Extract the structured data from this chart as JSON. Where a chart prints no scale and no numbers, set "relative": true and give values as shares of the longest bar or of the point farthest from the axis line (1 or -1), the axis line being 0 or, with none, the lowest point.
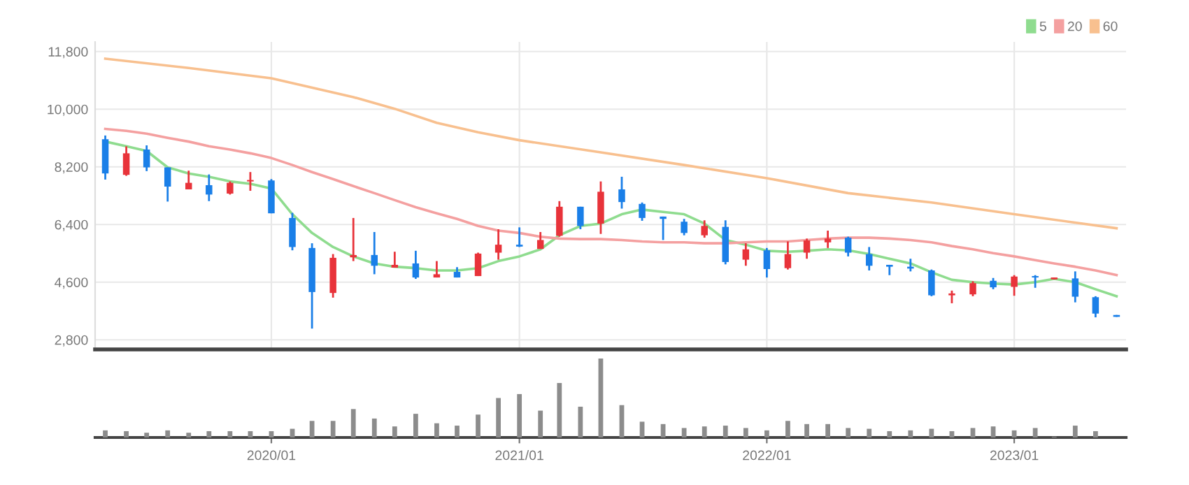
{
  "chart_data": [
    {
      "type": "candlestick",
      "x": [
        "2019-05",
        "2019-06",
        "2019-07",
        "2019-08",
        "2019-09",
        "2019-10",
        "2019-11",
        "2019-12",
        "2020-01",
        "2020-02",
        "2020-03",
        "2020-04",
        "2020-05",
        "2020-06",
        "2020-07",
        "2020-08",
        "2020-09",
        "2020-10",
        "2020-11",
        "2020-12",
        "2021-01",
        "2021-02",
        "2021-03",
        "2021-04",
        "2021-05",
        "2021-06",
        "2021-07",
        "2021-08",
        "2021-09",
        "2021-10",
        "2021-11",
        "2021-12",
        "2022-01",
        "2022-02",
        "2022-03",
        "2022-04",
        "2022-05",
        "2022-06",
        "2022-07",
        "2022-08",
        "2022-09",
        "2022-10",
        "2022-11",
        "2022-12",
        "2023-01",
        "2023-02",
        "2023-03",
        "2023-04",
        "2023-05",
        "2023-06"
      ],
      "ohlc": [
        [
          9062,
          9179,
          7803,
          7994
        ],
        [
          7950,
          8842,
          7920,
          8623
        ],
        [
          8740,
          8871,
          8067,
          8184
        ],
        [
          8184,
          8184,
          7116,
          7584
        ],
        [
          7496,
          8081,
          7496,
          7701
        ],
        [
          7628,
          7964,
          7130,
          7335
        ],
        [
          7365,
          7745,
          7335,
          7701
        ],
        [
          7745,
          8038,
          7452,
          7789
        ],
        [
          7774,
          7818,
          6750,
          6750
        ],
        [
          6604,
          6765,
          5594,
          5697
        ],
        [
          5667,
          5814,
          3151,
          4292
        ],
        [
          4263,
          5477,
          4117,
          5360
        ],
        [
          5375,
          6604,
          5258,
          5448
        ],
        [
          5448,
          6165,
          4848,
          5112
        ],
        [
          5053,
          5550,
          5053,
          5141
        ],
        [
          5185,
          5580,
          4702,
          4746
        ],
        [
          4746,
          5258,
          4746,
          4848
        ],
        [
          4921,
          5068,
          4746,
          4746
        ],
        [
          4790,
          5521,
          4790,
          5492
        ],
        [
          5521,
          6253,
          5302,
          5770
        ],
        [
          5770,
          6311,
          5697,
          5711
        ],
        [
          5638,
          6165,
          5638,
          5916
        ],
        [
          6048,
          7130,
          6019,
          6955
        ],
        [
          6955,
          6955,
          6253,
          6355
        ],
        [
          6428,
          7745,
          6106,
          7423
        ],
        [
          7496,
          7891,
          6896,
          7101
        ],
        [
          7043,
          7087,
          6516,
          6604
        ],
        [
          6648,
          6648,
          5916,
          6575
        ],
        [
          6487,
          6575,
          6063,
          6136
        ],
        [
          6063,
          6531,
          5989,
          6355
        ],
        [
          6326,
          6531,
          5155,
          5229
        ],
        [
          5302,
          5814,
          5112,
          5624
        ],
        [
          5594,
          5667,
          4746,
          5009
        ],
        [
          5038,
          5872,
          4995,
          5477
        ],
        [
          5521,
          5960,
          5331,
          5902
        ],
        [
          5843,
          6209,
          5667,
          5960
        ],
        [
          5989,
          6019,
          5404,
          5521
        ],
        [
          5477,
          5697,
          4965,
          5112
        ],
        [
          5141,
          5141,
          4819,
          5082
        ],
        [
          5082,
          5331,
          4936,
          5024
        ],
        [
          4965,
          4995,
          4161,
          4190
        ],
        [
          4190,
          4336,
          3941,
          4248
        ],
        [
          4219,
          4629,
          4161,
          4570
        ],
        [
          4643,
          4731,
          4380,
          4439
        ],
        [
          4453,
          4819,
          4175,
          4775
        ],
        [
          4790,
          4819,
          4424,
          4746
        ],
        [
          4687,
          4746,
          4687,
          4746
        ],
        [
          4717,
          4936,
          3970,
          4146
        ],
        [
          4131,
          4161,
          3502,
          3619
        ],
        [
          3575,
          3575,
          3517,
          3517
        ]
      ],
      "colors": [
        "#1a7fe8",
        "#e8333a",
        "#1a7fe8",
        "#1a7fe8",
        "#e8333a",
        "#1a7fe8",
        "#e8333a",
        "#e8333a",
        "#1a7fe8",
        "#1a7fe8",
        "#1a7fe8",
        "#e8333a",
        "#e8333a",
        "#1a7fe8",
        "#e8333a",
        "#1a7fe8",
        "#e8333a",
        "#1a7fe8",
        "#e8333a",
        "#e8333a",
        "#1a7fe8",
        "#e8333a",
        "#e8333a",
        "#1a7fe8",
        "#e8333a",
        "#1a7fe8",
        "#1a7fe8",
        "#1a7fe8",
        "#1a7fe8",
        "#e8333a",
        "#1a7fe8",
        "#e8333a",
        "#1a7fe8",
        "#e8333a",
        "#e8333a",
        "#e8333a",
        "#1a7fe8",
        "#1a7fe8",
        "#1a7fe8",
        "#1a7fe8",
        "#1a7fe8",
        "#e8333a",
        "#e8333a",
        "#1a7fe8",
        "#e8333a",
        "#1a7fe8",
        "#e8333a",
        "#1a7fe8",
        "#1a7fe8",
        "#1a7fe8"
      ],
      "series": [
        {
          "name": "5",
          "type": "line",
          "color": "#8fdc8f",
          "values": [
            8988,
            8842,
            8696,
            8184,
            7994,
            7891,
            7745,
            7672,
            7525,
            6721,
            6136,
            5697,
            5404,
            5185,
            5082,
            5038,
            4965,
            4965,
            5038,
            5258,
            5404,
            5624,
            6063,
            6355,
            6428,
            6721,
            6867,
            6794,
            6721,
            6428,
            5916,
            5770,
            5580,
            5550,
            5580,
            5624,
            5594,
            5477,
            5331,
            5185,
            4907,
            4673,
            4599,
            4556,
            4526,
            4599,
            4702,
            4599,
            4380,
            4161
          ]
        },
        {
          "name": "20",
          "type": "line",
          "color": "#f4a0a0",
          "values": [
            9384,
            9325,
            9237,
            9106,
            8988,
            8842,
            8740,
            8623,
            8476,
            8257,
            8038,
            7818,
            7599,
            7379,
            7160,
            6940,
            6750,
            6575,
            6355,
            6209,
            6136,
            6019,
            5960,
            5945,
            5945,
            5916,
            5872,
            5843,
            5843,
            5814,
            5814,
            5843,
            5872,
            5872,
            5916,
            5960,
            5989,
            5989,
            5960,
            5916,
            5843,
            5726,
            5624,
            5507,
            5404,
            5287,
            5185,
            5082,
            4965,
            4819
          ]
        },
        {
          "name": "60",
          "type": "line",
          "color": "#f8c08f",
          "x": [
            "2019-05",
            "2019-09",
            "2020-01",
            "2020-05",
            "2020-07",
            "2020-09",
            "2020-11",
            "2021-01",
            "2021-05",
            "2021-09",
            "2022-01",
            "2022-05",
            "2022-09",
            "2023-01",
            "2023-06"
          ],
          "values": [
            11578,
            11286,
            10964,
            10378,
            10013,
            9574,
            9281,
            9032,
            8652,
            8257,
            7847,
            7379,
            7087,
            6721,
            6282
          ]
        }
      ],
      "xlim": [
        "2019-04-16",
        "2023-06-15"
      ],
      "xticks": [
        {
          "value": "2020-01",
          "label": null
        },
        {
          "value": "2021-01",
          "label": null
        },
        {
          "value": "2022-01",
          "label": null
        },
        {
          "value": "2023-01",
          "label": null
        }
      ],
      "ylim": [
        2500,
        12100
      ],
      "yticks": [
        {
          "value": 2800,
          "label": "2,800"
        },
        {
          "value": 4600,
          "label": "4,600"
        },
        {
          "value": 6400,
          "label": "6,400"
        },
        {
          "value": 8200,
          "label": "8,200"
        },
        {
          "value": 10000,
          "label": "10,000"
        },
        {
          "value": 11800,
          "label": "11,800"
        }
      ],
      "grid": true,
      "legend": "top right",
      "tick_labels": "y"
    },
    {
      "type": "bar",
      "relative": true,
      "x": [
        "2019-05",
        "2019-06",
        "2019-07",
        "2019-08",
        "2019-09",
        "2019-10",
        "2019-11",
        "2019-12",
        "2020-01",
        "2020-02",
        "2020-03",
        "2020-04",
        "2020-05",
        "2020-06",
        "2020-07",
        "2020-08",
        "2020-09",
        "2020-10",
        "2020-11",
        "2020-12",
        "2021-01",
        "2021-02",
        "2021-03",
        "2021-04",
        "2021-05",
        "2021-06",
        "2021-07",
        "2021-08",
        "2021-09",
        "2021-10",
        "2021-11",
        "2021-12",
        "2022-01",
        "2022-02",
        "2022-03",
        "2022-04",
        "2022-05",
        "2022-06",
        "2022-07",
        "2022-08",
        "2022-09",
        "2022-10",
        "2022-11",
        "2022-12",
        "2023-01",
        "2023-02",
        "2023-03",
        "2023-04",
        "2023-05"
      ],
      "values": [
        0.09,
        0.08,
        0.06,
        0.09,
        0.06,
        0.08,
        0.08,
        0.08,
        0.08,
        0.11,
        0.21,
        0.21,
        0.36,
        0.24,
        0.14,
        0.3,
        0.18,
        0.15,
        0.29,
        0.5,
        0.55,
        0.34,
        0.69,
        0.39,
        1,
        0.41,
        0.2,
        0.17,
        0.12,
        0.14,
        0.15,
        0.12,
        0.09,
        0.21,
        0.17,
        0.17,
        0.12,
        0.11,
        0.08,
        0.09,
        0.11,
        0.08,
        0.12,
        0.14,
        0.09,
        0.12,
        0.01,
        0.15,
        0.08
      ],
      "color": "#8c8c8c",
      "xlim": [
        "2019-04-16",
        "2023-06-15"
      ],
      "xticks": [
        {
          "value": "2020-01",
          "label": "2020/01"
        },
        {
          "value": "2021-01",
          "label": "2021/01"
        },
        {
          "value": "2022-01",
          "label": "2022/01"
        },
        {
          "value": "2023-01",
          "label": "2023/01"
        }
      ],
      "tick_labels": "x"
    }
  ]
}
